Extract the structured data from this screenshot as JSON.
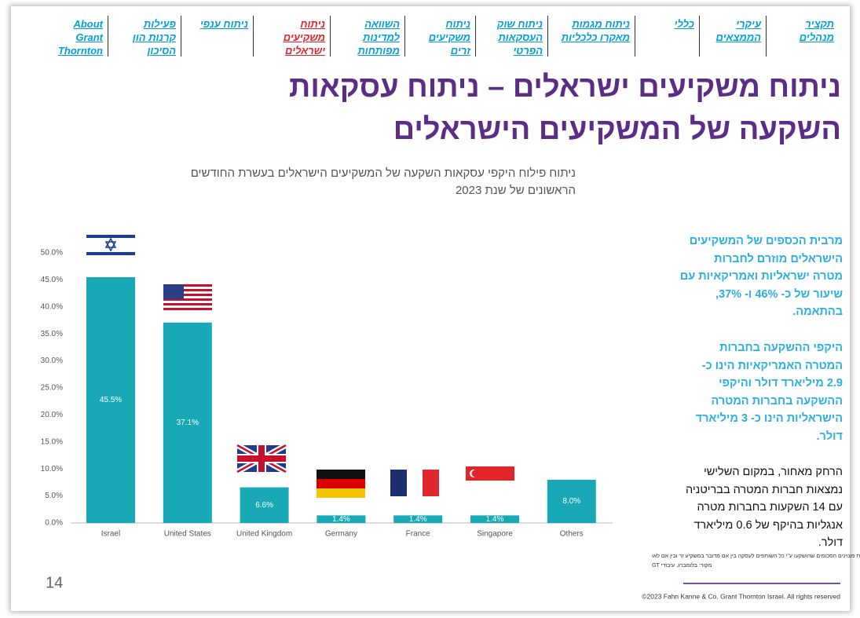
{
  "nav": [
    {
      "lines": [
        "תקציר",
        "מנהלים"
      ],
      "color": "#00a0e0"
    },
    {
      "lines": [
        "עיקרי",
        "הממצאים"
      ],
      "color": "#00a0e0"
    },
    {
      "lines": [
        "כללי"
      ],
      "color": "#00a0e0"
    },
    {
      "lines": [
        "ניתוח מגמות",
        "מאקרו כלכליות"
      ],
      "color": "#00a0e0"
    },
    {
      "lines": [
        "ניתוח שוק",
        "העסקאות",
        "הפרטי"
      ],
      "color": "#00a0e0"
    },
    {
      "lines": [
        "ניתוח",
        "משקיעים",
        "זרים"
      ],
      "color": "#00a0e0"
    },
    {
      "lines": [
        "השוואה",
        "למדינות",
        "מפותחות"
      ],
      "color": "#00a0e0"
    },
    {
      "lines": [
        "ניתוח",
        "משקיעים",
        "ישראלים"
      ],
      "color": "#e8202a"
    },
    {
      "lines": [
        "ניתוח ענפי"
      ],
      "color": "#00a0e0"
    },
    {
      "lines": [
        "פעילות",
        "קרנות הון",
        "הסיכון"
      ],
      "color": "#00a0e0"
    },
    {
      "lines": [
        "About",
        "Grant",
        "Thornton"
      ],
      "color": "#00a0e0"
    }
  ],
  "title": [
    "ניתוח משקיעים ישראלים – ניתוח עסקאות",
    "השקעה של המשקיעים הישראלים"
  ],
  "chart_data": {
    "type": "bar",
    "subtitle": [
      "ניתוח פילוח היקפי עסקאות השקעה של המשקיעים הישראלים בעשרת החודשים",
      "הראשונים של שנת 2023"
    ],
    "categories": [
      "Israel",
      "United States",
      "United Kingdom",
      "Germany",
      "France",
      "Singapore",
      "Others"
    ],
    "values": [
      45.5,
      37.1,
      6.6,
      1.4,
      1.4,
      1.4,
      8.0
    ],
    "value_labels": [
      "45.5%",
      "37.1%",
      "6.6%",
      "1.4%",
      "1.4%",
      "1.4%",
      "8.0%"
    ],
    "color": "#19a9b6",
    "ylim": [
      0,
      50
    ],
    "yticks": [
      {
        "value": 0,
        "label": "0.0%"
      },
      {
        "value": 5,
        "label": "5.0%"
      },
      {
        "value": 10,
        "label": "10.0%"
      },
      {
        "value": 15,
        "label": "15.0%"
      },
      {
        "value": 20,
        "label": "20.0%"
      },
      {
        "value": 25,
        "label": "25.0%"
      },
      {
        "value": 30,
        "label": "30.0%"
      },
      {
        "value": 35,
        "label": "35.0%"
      },
      {
        "value": 40,
        "label": "40.0%"
      },
      {
        "value": 45,
        "label": "45.0%"
      },
      {
        "value": 50,
        "label": "50.0%"
      }
    ],
    "grid": false,
    "footnotes": [
      "יצוין כי בעסקאות משותפות מצוינים הסכומים שהושקעו ע\"י כל השותפים לעסקה בין אם מדובר במשקיע זר ובין אם לאו",
      "מקור: בלומברג, עיבודי GT"
    ]
  },
  "paragraphs": [
    {
      "color": "#2ab0e4",
      "lines": [
        "מרבית הכספים של המשקיעים",
        "הישראלים מוזרם לחברות",
        "מטרה ישראליות ואמריקאיות עם",
        "שיעור של כ- 46% ו- 37%,",
        "בהתאמה."
      ]
    },
    {
      "color": "#2ab0e4",
      "lines": [
        "היקפי ההשקעה בחברות",
        "המטרה האמריקאיות הינו כ-",
        "2.9 מיליארד דולר והיקפי",
        "ההשקעה בחברות המטרה",
        "הישראליות הינו כ- 3 מיליארד",
        "דולר."
      ]
    },
    {
      "color": "#111111",
      "lines": [
        "הרחק מאחור, במקום השלישי",
        "נמצאות חברות המטרה בבריטניה",
        "עם 14 השקעות בחברות מטרה",
        "אנגליות בהיקף של 0.6 מיליארד",
        "דולר."
      ]
    }
  ],
  "page_number": "14",
  "copyright": "©2023 Fahn Kanne & Co. Grant Thornton Israel. All rights reserved"
}
